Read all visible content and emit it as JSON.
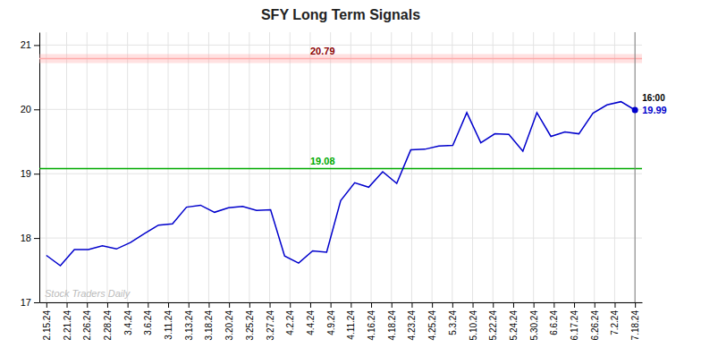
{
  "chart_data": {
    "type": "line",
    "title": "SFY Long Term Signals",
    "x": [
      0,
      1,
      2,
      3,
      4,
      5,
      6,
      7,
      8,
      9,
      10,
      11,
      12,
      13,
      14,
      15,
      16,
      17,
      18,
      19,
      20,
      21,
      22,
      23,
      24,
      25,
      26,
      27,
      28,
      29,
      30,
      31,
      32,
      33,
      34,
      35,
      36,
      37,
      38,
      39,
      40,
      41,
      42
    ],
    "values": [
      17.73,
      17.57,
      17.82,
      17.82,
      17.88,
      17.83,
      17.93,
      18.07,
      18.2,
      18.22,
      18.48,
      18.51,
      18.4,
      18.47,
      18.49,
      18.43,
      18.44,
      17.72,
      17.61,
      17.8,
      17.78,
      18.58,
      18.86,
      18.79,
      19.03,
      18.85,
      19.37,
      19.38,
      19.43,
      19.44,
      19.95,
      19.48,
      19.62,
      19.61,
      19.35,
      19.95,
      19.58,
      19.65,
      19.62,
      19.94,
      20.07,
      20.12,
      19.99
    ],
    "color": "#0000cc",
    "xlim": [
      -0.5,
      42.5
    ],
    "xticks": [
      {
        "value": 0,
        "label": "2.15.24"
      },
      {
        "value": 1.4482758620689655,
        "label": "2.21.24"
      },
      {
        "value": 2.896551724137931,
        "label": "2.26.24"
      },
      {
        "value": 4.344827586206897,
        "label": "2.28.24"
      },
      {
        "value": 5.793103448275862,
        "label": "3.4.24"
      },
      {
        "value": 7.241379310344827,
        "label": "3.6.24"
      },
      {
        "value": 8.689655172413794,
        "label": "3.11.24"
      },
      {
        "value": 10.137931034482758,
        "label": "3.13.24"
      },
      {
        "value": 11.586206896551724,
        "label": "3.18.24"
      },
      {
        "value": 13.03448275862069,
        "label": "3.20.24"
      },
      {
        "value": 14.482758620689655,
        "label": "3.25.24"
      },
      {
        "value": 15.931034482758621,
        "label": "3.27.24"
      },
      {
        "value": 17.379310344827587,
        "label": "4.2.24"
      },
      {
        "value": 18.82758620689655,
        "label": "4.4.24"
      },
      {
        "value": 20.275862068965516,
        "label": "4.9.24"
      },
      {
        "value": 21.724137931034484,
        "label": "4.11.24"
      },
      {
        "value": 23.17241379310345,
        "label": "4.16.24"
      },
      {
        "value": 24.620689655172413,
        "label": "4.18.24"
      },
      {
        "value": 26.06896551724138,
        "label": "4.23.24"
      },
      {
        "value": 27.517241379310345,
        "label": "4.25.24"
      },
      {
        "value": 28.96551724137931,
        "label": "5.3.24"
      },
      {
        "value": 30.413793103448278,
        "label": "5.10.24"
      },
      {
        "value": 31.862068965517242,
        "label": "5.22.24"
      },
      {
        "value": 33.310344827586206,
        "label": "5.24.24"
      },
      {
        "value": 34.758620689655174,
        "label": "5.30.24"
      },
      {
        "value": 36.206896551724135,
        "label": "6.6.24"
      },
      {
        "value": 37.6551724137931,
        "label": "6.17.24"
      },
      {
        "value": 39.10344827586207,
        "label": "6.26.24"
      },
      {
        "value": 40.55172413793103,
        "label": "7.2.24"
      },
      {
        "value": 42,
        "label": "7.18.24"
      }
    ],
    "ylim": [
      17,
      21.2
    ],
    "yticks": [
      17,
      18,
      19,
      20,
      21
    ],
    "grid": true,
    "hlines": [
      {
        "value": 20.79,
        "band": [
          20.72,
          20.86
        ],
        "color": "#ffaaaa",
        "label_color": "darkred"
      },
      {
        "value": 19.08,
        "color": "#00aa00",
        "label_color": "#00aa00"
      }
    ],
    "annotations": [
      {
        "text": "16:00"
      },
      {
        "text": "19.99",
        "color": "#0000cc"
      }
    ],
    "watermark": "Stock Traders Daily"
  }
}
